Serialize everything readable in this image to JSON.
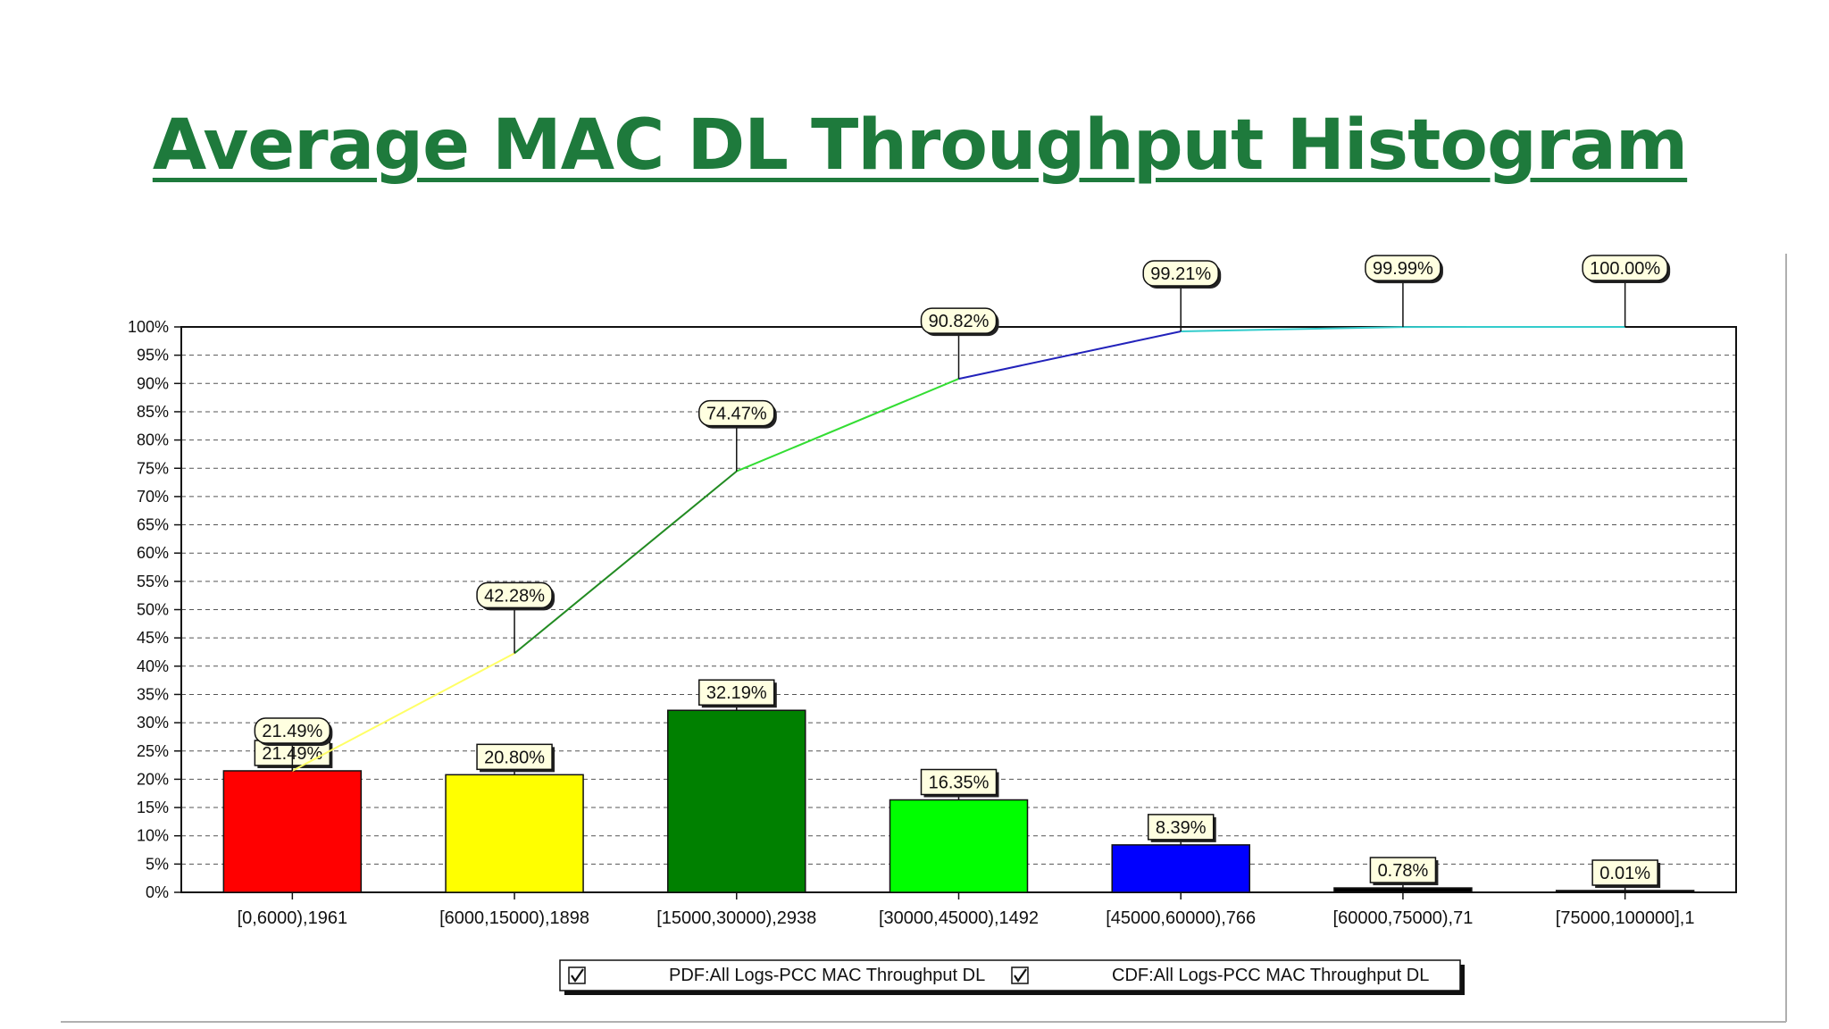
{
  "slide": {
    "title": "Average MAC DL Throughput Histogram"
  },
  "chart_data": {
    "type": "bar",
    "categories": [
      "[0,6000),1961",
      "[6000,15000),1898",
      "[15000,30000),2938",
      "[30000,45000),1492",
      "[45000,60000),766",
      "[60000,75000),71",
      "[75000,100000],1"
    ],
    "series": [
      {
        "name": "PDF:All Logs-PCC MAC Throughput DL",
        "type": "bar",
        "values": [
          21.49,
          20.8,
          32.19,
          16.35,
          8.39,
          0.78,
          0.01
        ],
        "labels": [
          "21.49%",
          "20.80%",
          "32.19%",
          "16.35%",
          "8.39%",
          "0.78%",
          "0.01%"
        ]
      },
      {
        "name": "CDF:All Logs-PCC MAC Throughput DL",
        "type": "line",
        "values": [
          21.49,
          42.28,
          74.47,
          90.82,
          99.21,
          99.99,
          100.0
        ],
        "labels": [
          "21.49%",
          "42.28%",
          "74.47%",
          "90.82%",
          "99.21%",
          "99.99%",
          "100.00%"
        ]
      }
    ],
    "ylim": [
      0,
      100
    ],
    "yticks": [
      "0%",
      "5%",
      "10%",
      "15%",
      "20%",
      "25%",
      "30%",
      "35%",
      "40%",
      "45%",
      "50%",
      "55%",
      "60%",
      "65%",
      "70%",
      "75%",
      "80%",
      "85%",
      "90%",
      "95%",
      "100%"
    ],
    "grid": true,
    "legend": "bottom-center",
    "bar_colors": [
      "#ff0000",
      "#ffff00",
      "#008000",
      "#00ff00",
      "#0000ff",
      "#000000",
      "#000000"
    ],
    "cdf_segment_colors": [
      "#ffff66",
      "#228b22",
      "#33dd33",
      "#2222bb",
      "#33cccc",
      "#33cccc"
    ]
  }
}
